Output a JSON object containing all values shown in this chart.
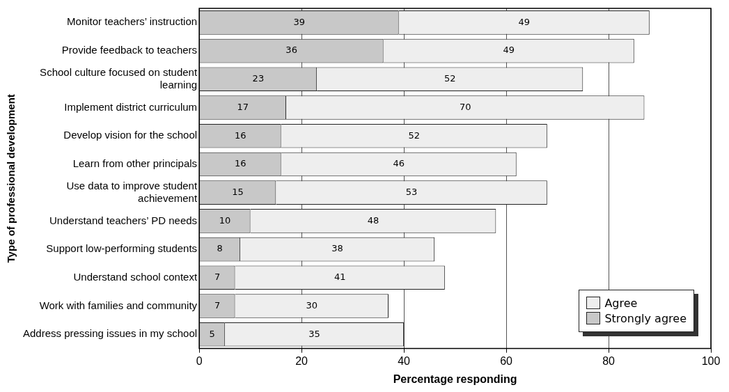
{
  "chart_data": {
    "type": "bar",
    "orientation": "horizontal",
    "stacked": true,
    "xlabel": "Percentage responding",
    "ylabel": "Type of professional development",
    "categories": [
      "Monitor teachers’ instruction",
      "Provide feedback to teachers",
      "School culture focused on student learning",
      "Implement district curriculum",
      "Develop vision for the school",
      "Learn from other principals",
      "Use data to improve student achievement",
      "Understand teachers’ PD needs",
      "Support low-performing students",
      "Understand school context",
      "Work with families and community",
      "Address pressing issues in my school"
    ],
    "series": [
      {
        "name": "Strongly agree",
        "color": "#c8c8c8",
        "values": [
          39,
          36,
          23,
          17,
          16,
          16,
          15,
          10,
          8,
          7,
          7,
          5
        ]
      },
      {
        "name": "Agree",
        "color": "#eeeeee",
        "values": [
          49,
          49,
          52,
          70,
          52,
          46,
          53,
          48,
          38,
          41,
          30,
          35
        ]
      }
    ],
    "xlim": [
      0,
      100
    ],
    "xticks": [
      0,
      20,
      40,
      60,
      80,
      100
    ],
    "grid": "x",
    "legend": "bottom right",
    "data_labels": true
  }
}
